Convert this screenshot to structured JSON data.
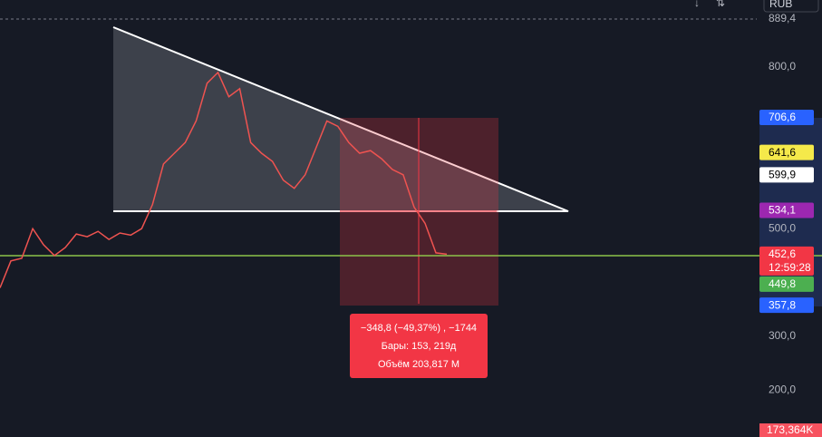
{
  "toolbar": {
    "currency": "RUB"
  },
  "price_axis": {
    "ticks": [
      {
        "value": 889.4,
        "label": "889,4"
      },
      {
        "value": 800,
        "label": "800,0"
      },
      {
        "value": 500,
        "label": "500,0"
      },
      {
        "value": 300,
        "label": "300,0"
      },
      {
        "value": 200,
        "label": "200,0"
      }
    ]
  },
  "price_series": {
    "color": "#ef5350",
    "values": [
      390,
      440,
      445,
      500,
      470,
      450,
      465,
      490,
      485,
      495,
      480,
      492,
      488,
      500,
      545,
      620,
      640,
      660,
      700,
      770,
      790,
      745,
      760,
      660,
      640,
      625,
      590,
      575,
      600,
      650,
      700,
      690,
      660,
      640,
      645,
      630,
      610,
      600,
      540,
      510,
      455,
      452.6
    ]
  },
  "level": {
    "value": 449.8,
    "color": "#8bc34a"
  },
  "badges": [
    {
      "value": 706.6,
      "label": "706,6",
      "color": "#2962ff",
      "text_color": "#ffffff"
    },
    {
      "value": 641.6,
      "label": "641,6",
      "color": "#f5e94a",
      "text_color": "#000000"
    },
    {
      "value": 599.9,
      "label": "599,9",
      "color": "#ffffff",
      "text_color": "#000000"
    },
    {
      "value": 534.1,
      "label": "534,1",
      "color": "#9c27b0",
      "text_color": "#ffffff"
    },
    {
      "value": 452.6,
      "label": "452,6",
      "countdown": "12:59:28",
      "color": "#f23645",
      "text_color": "#ffffff"
    },
    {
      "value": 449.8,
      "label": "449,8",
      "color": "#4caf50",
      "text_color": "#ffffff"
    },
    {
      "value": 357.8,
      "label": "357,8",
      "color": "#2962ff",
      "text_color": "#ffffff"
    }
  ],
  "volume_badge": "173,364K",
  "measure": {
    "lines": [
      "−348,8 (−49,37%) , −1744",
      "Бары: 153, 219д",
      "Объём 203,817 M"
    ]
  }
}
